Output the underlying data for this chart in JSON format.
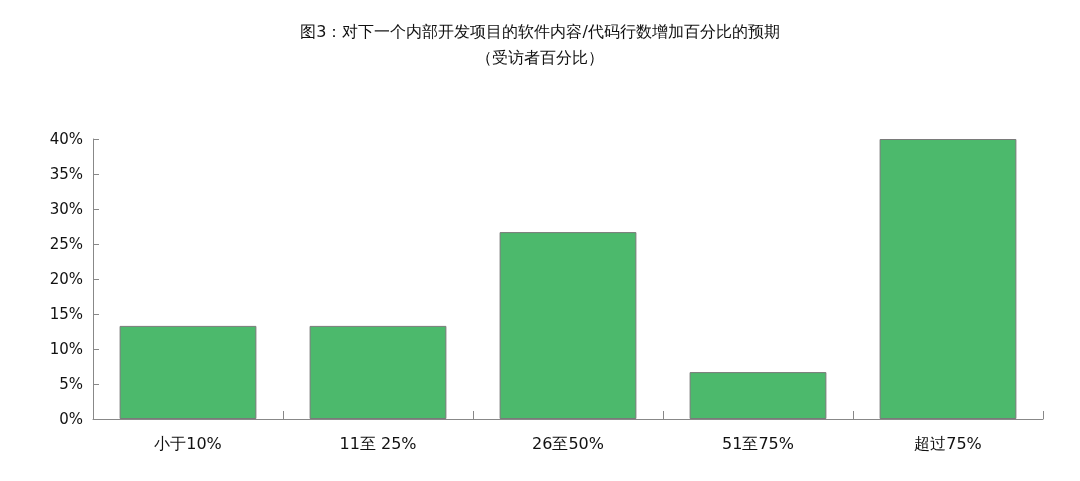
{
  "chart_data": {
    "type": "bar",
    "title": "图3：对下一个内部开发项目的软件内容/代码行数增加百分比的预期",
    "subtitle": "（受访者百分比）",
    "categories": [
      "小于10%",
      "11至 25%",
      "26至50%",
      "51至75%",
      "超过75%"
    ],
    "values": [
      13.3,
      13.3,
      26.7,
      6.7,
      40
    ],
    "color": "#4cb96c",
    "ylim": [
      0,
      40
    ],
    "yticks": [
      {
        "value": 0,
        "label": "0%"
      },
      {
        "value": 5,
        "label": "5%"
      },
      {
        "value": 10,
        "label": "10%"
      },
      {
        "value": 15,
        "label": "15%"
      },
      {
        "value": 20,
        "label": "20%"
      },
      {
        "value": 25,
        "label": "25%"
      },
      {
        "value": 30,
        "label": "30%"
      },
      {
        "value": 35,
        "label": "35%"
      },
      {
        "value": 40,
        "label": "40%"
      }
    ],
    "grid": false
  }
}
